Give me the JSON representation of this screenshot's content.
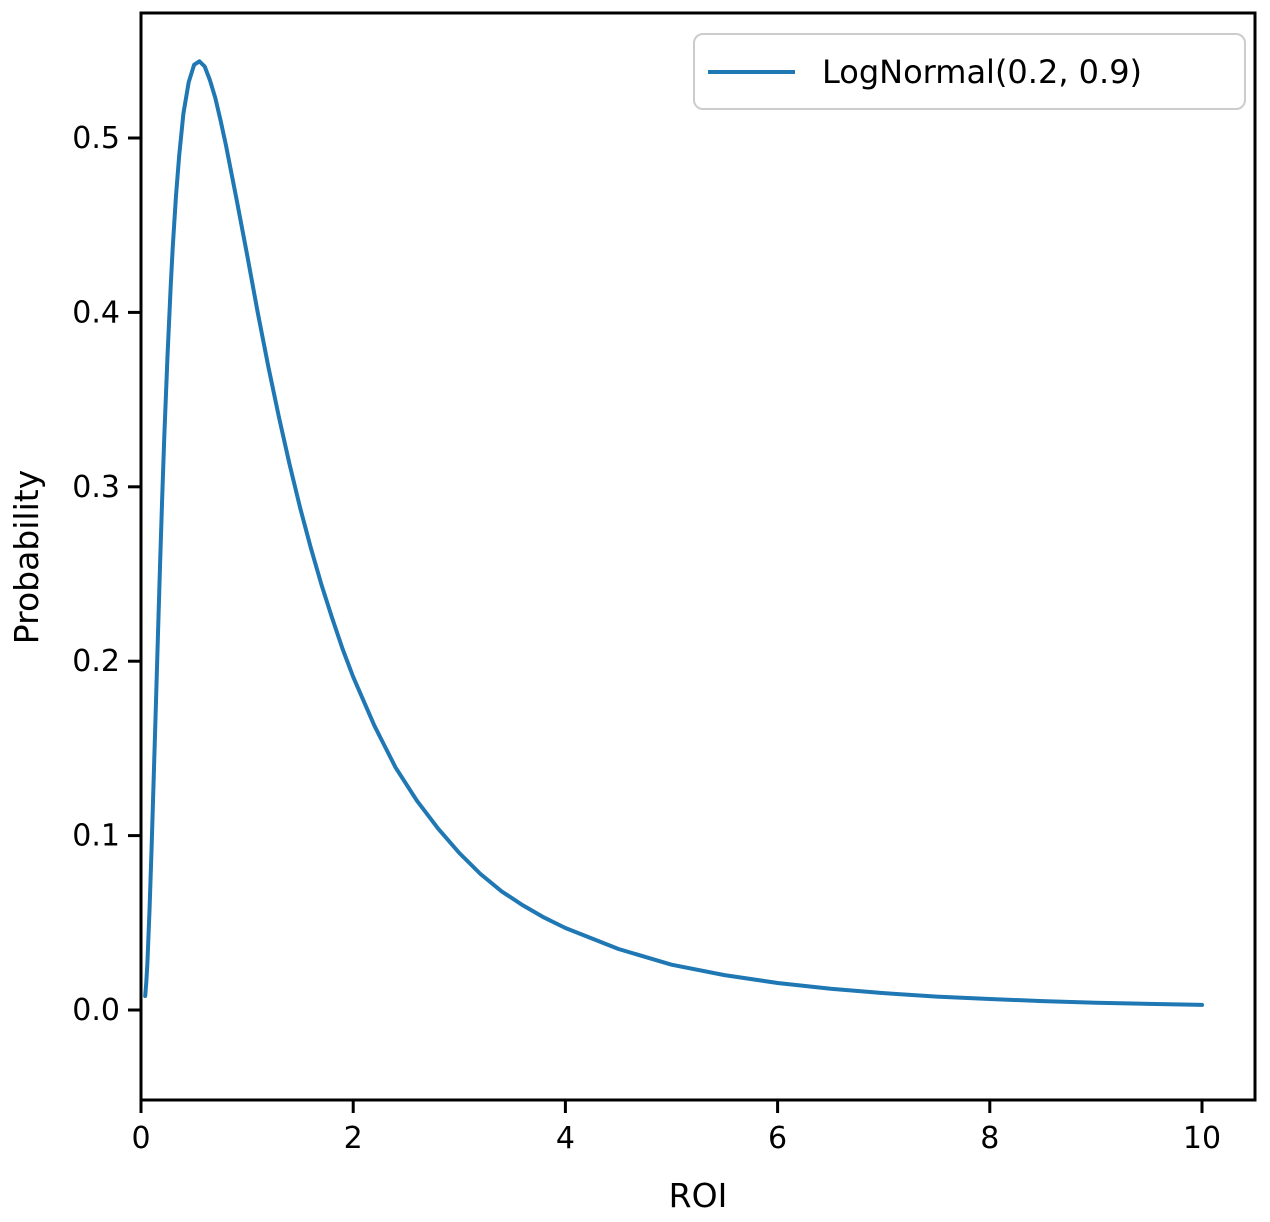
{
  "chart_data": {
    "type": "line",
    "title": "",
    "xlabel": "ROI",
    "ylabel": "Probability",
    "grid": false,
    "legend_position": "upper right",
    "legend": [
      {
        "label": "LogNormal(0.2, 0.9)",
        "color": "#1f77b4"
      }
    ],
    "xlim": [
      0,
      10.5
    ],
    "ylim": [
      -0.052,
      0.575
    ],
    "xticks": [
      0,
      2,
      4,
      6,
      8,
      10
    ],
    "xtick_labels": [
      "0",
      "2",
      "4",
      "6",
      "8",
      "10"
    ],
    "yticks": [
      0.0,
      0.1,
      0.2,
      0.3,
      0.4,
      0.5
    ],
    "ytick_labels": [
      "0.0",
      "0.1",
      "0.2",
      "0.3",
      "0.4",
      "0.5"
    ],
    "series": [
      {
        "name": "LogNormal(0.2, 0.9)",
        "color": "#1f77b4",
        "x": [
          0.04,
          0.05,
          0.06,
          0.08,
          0.1,
          0.12,
          0.14,
          0.16,
          0.18,
          0.2,
          0.22,
          0.25,
          0.28,
          0.3,
          0.33,
          0.36,
          0.4,
          0.45,
          0.5,
          0.55,
          0.6,
          0.65,
          0.7,
          0.75,
          0.8,
          0.9,
          1.0,
          1.1,
          1.2,
          1.3,
          1.4,
          1.5,
          1.6,
          1.7,
          1.8,
          1.9,
          2.0,
          2.2,
          2.4,
          2.6,
          2.8,
          3.0,
          3.2,
          3.4,
          3.6,
          3.8,
          4.0,
          4.5,
          5.0,
          5.5,
          6.0,
          6.5,
          7.0,
          7.5,
          8.0,
          8.5,
          9.0,
          9.5,
          10.0
        ],
        "y": [
          0.008,
          0.016,
          0.027,
          0.057,
          0.093,
          0.133,
          0.175,
          0.216,
          0.256,
          0.294,
          0.329,
          0.375,
          0.415,
          0.438,
          0.467,
          0.49,
          0.514,
          0.532,
          0.542,
          0.544,
          0.541,
          0.533,
          0.523,
          0.51,
          0.496,
          0.465,
          0.433,
          0.4,
          0.369,
          0.34,
          0.313,
          0.288,
          0.265,
          0.244,
          0.225,
          0.207,
          0.191,
          0.163,
          0.139,
          0.12,
          0.104,
          0.09,
          0.078,
          0.068,
          0.06,
          0.053,
          0.047,
          0.035,
          0.026,
          0.02,
          0.0155,
          0.0122,
          0.0097,
          0.0077,
          0.0063,
          0.0051,
          0.0042,
          0.0035,
          0.0029
        ]
      }
    ]
  },
  "colors": {
    "line": "#1f77b4",
    "spine": "#000000",
    "legend_border": "#cccccc",
    "background": "#ffffff"
  }
}
